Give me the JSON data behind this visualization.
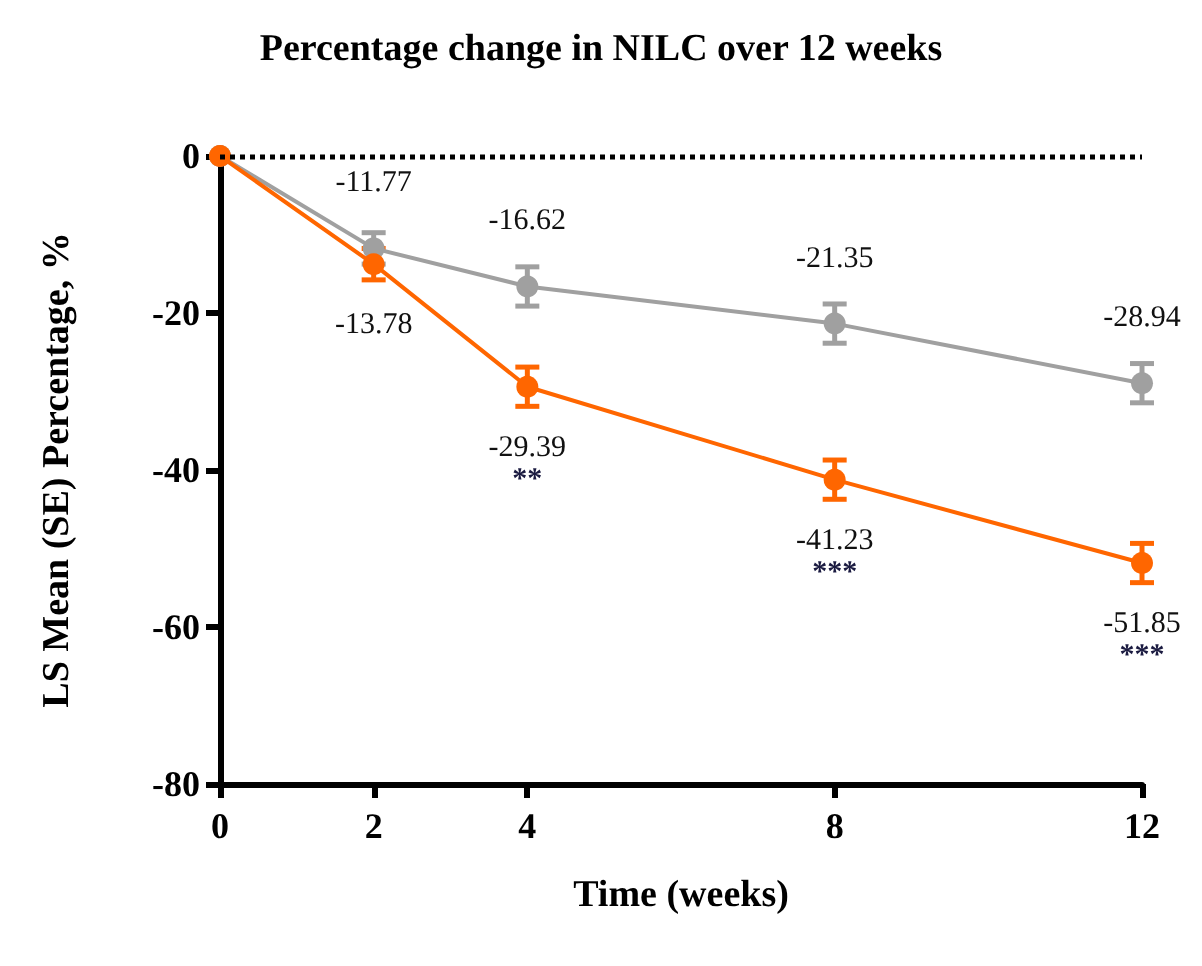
{
  "chart_data": {
    "type": "line",
    "title": "Percentage change in NILC over 12 weeks",
    "xlabel": "Time (weeks)",
    "ylabel": "LS Mean (SE) Percentage, %",
    "x": [
      0,
      2,
      4,
      8,
      12
    ],
    "series": [
      {
        "color": "#a0a0a0",
        "values": [
          0,
          -11.77,
          -16.62,
          -21.35,
          -28.94
        ],
        "errors": [
          null,
          2,
          2.5,
          2.5,
          2.5
        ],
        "value_labels": [
          null,
          "-11.77",
          "-16.62",
          "-21.35",
          "-28.94"
        ]
      },
      {
        "color": "#ff6600",
        "values": [
          0,
          -13.78,
          -29.39,
          -41.23,
          -51.85
        ],
        "errors": [
          null,
          2,
          2.5,
          2.5,
          2.5
        ],
        "value_labels": [
          null,
          "-13.78",
          "-29.39",
          "-41.23",
          "-51.85"
        ]
      }
    ],
    "xlim": [
      0,
      12
    ],
    "xticks": [
      0,
      2,
      4,
      8,
      12
    ],
    "ylim": [
      -80,
      0
    ],
    "yticks": [
      -80,
      -60,
      -40,
      -20,
      0
    ],
    "ref_lines": [
      {
        "axis": "y",
        "value": 0,
        "color": "#000000",
        "line_style": "dotted"
      }
    ],
    "annotations": [
      "**",
      "***",
      "***"
    ],
    "marker": "circle",
    "line_style": "solid",
    "grid": false
  }
}
